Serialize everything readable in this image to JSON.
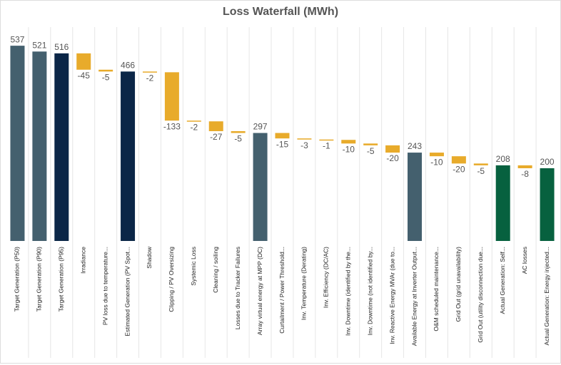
{
  "chart_data": {
    "type": "waterfall",
    "title": "Loss Waterfall (MWh)",
    "categories": [
      "Target Generation (P50)",
      "Target Generation (P90)",
      "Target Generation (P95)",
      "Irradiance",
      "PV loss due to temperature...",
      "Estimated Generation (PV Spot...",
      "Shadow",
      "Clipping / PV Oversizing",
      "Systemic Loss",
      "Cleaning / soiling",
      "Losses due to Tracker Failures",
      "Array virtual energy at MPP (DC)",
      "Curtailment / Power Threshold...",
      "Inv. Temperature (Derating)",
      "Inv. Efficiency (DC/AC)",
      "Inv. Downtime (identified by the...",
      "Inv. Downtime (not identified by...",
      "Inv. Reactive Energy MVAr (due to...",
      "Available Energy at Inverter Output...",
      "O&M scheduled maintenance...",
      "Grid Out (grid unavailability)",
      "Grid Out (utility disconnection due...",
      "Actual Generation: Self...",
      "AC losses",
      "Actual Generation: Energy injected..."
    ],
    "values": [
      537,
      521,
      516,
      -45,
      -5,
      466,
      -2,
      -133,
      -2,
      -27,
      -5,
      297,
      -15,
      -3,
      -1,
      -10,
      -5,
      -20,
      243,
      -10,
      -20,
      -5,
      208,
      -8,
      200
    ],
    "measure": [
      "total",
      "total",
      "total",
      "relative",
      "relative",
      "total",
      "relative",
      "relative",
      "relative",
      "relative",
      "relative",
      "total",
      "relative",
      "relative",
      "relative",
      "relative",
      "relative",
      "relative",
      "total",
      "relative",
      "relative",
      "relative",
      "total",
      "relative",
      "total"
    ],
    "colors": [
      "#44606e",
      "#44606e",
      "#0b2647",
      "#e8ab2b",
      "#e8ab2b",
      "#0b2647",
      "#e8ab2b",
      "#e8ab2b",
      "#e8ab2b",
      "#e8ab2b",
      "#e8ab2b",
      "#44606e",
      "#e8ab2b",
      "#e8ab2b",
      "#e8ab2b",
      "#e8ab2b",
      "#e8ab2b",
      "#e8ab2b",
      "#44606e",
      "#e8ab2b",
      "#e8ab2b",
      "#e8ab2b",
      "#07613f",
      "#e8ab2b",
      "#07613f"
    ],
    "ylim": [
      0,
      600
    ]
  }
}
